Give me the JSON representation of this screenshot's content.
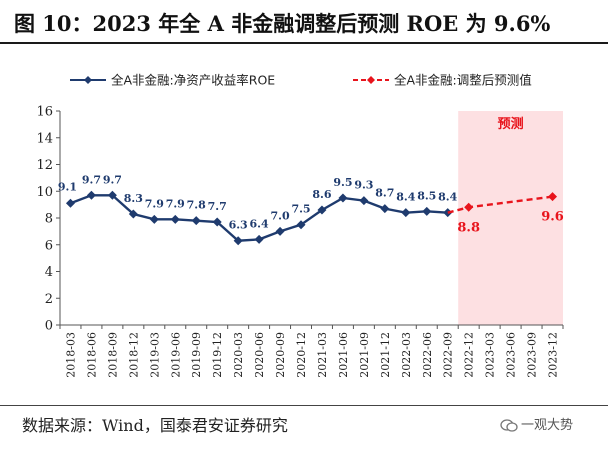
{
  "title": "图 10：2023 年全 A 非金融调整后预测 ROE 为 9.6%",
  "source": "数据来源：Wind，国泰君安证券研究",
  "watermark": "一观大势",
  "chart_data": {
    "type": "line",
    "title": "",
    "xlabel": "",
    "ylabel": "",
    "ylim": [
      0,
      16
    ],
    "yticks": [
      0,
      2,
      4,
      6,
      8,
      10,
      12,
      14,
      16
    ],
    "grid": false,
    "legend_position": "top",
    "categories": [
      "2018-03",
      "2018-06",
      "2018-09",
      "2018-12",
      "2019-03",
      "2019-06",
      "2019-09",
      "2019-12",
      "2020-03",
      "2020-06",
      "2020-09",
      "2020-12",
      "2021-03",
      "2021-06",
      "2021-09",
      "2021-12",
      "2022-03",
      "2022-06",
      "2022-09",
      "2022-12",
      "2023-03",
      "2023-06",
      "2023-09",
      "2023-12"
    ],
    "series": [
      {
        "name": "全A非金融:净资产收益率ROE",
        "color": "#1f3b6e",
        "style": "solid",
        "marker": "diamond",
        "x": [
          "2018-03",
          "2018-06",
          "2018-09",
          "2018-12",
          "2019-03",
          "2019-06",
          "2019-09",
          "2019-12",
          "2020-03",
          "2020-06",
          "2020-09",
          "2020-12",
          "2021-03",
          "2021-06",
          "2021-09",
          "2021-12",
          "2022-03",
          "2022-06",
          "2022-09"
        ],
        "values": [
          9.1,
          9.7,
          9.7,
          8.3,
          7.9,
          7.9,
          7.8,
          7.7,
          6.3,
          6.4,
          7.0,
          7.5,
          8.6,
          9.5,
          9.3,
          8.7,
          8.4,
          8.5,
          8.4
        ],
        "labels": [
          "9.1",
          "9.7",
          "9.7",
          "8.3",
          "7.9",
          "7.9",
          "7.8",
          "7.7",
          "6.3",
          "6.4",
          "7.0",
          "7.5",
          "8.6",
          "9.5",
          "9.3",
          "8.7",
          "8.4",
          "8.5",
          "8.4"
        ]
      },
      {
        "name": "全A非金融:调整后预测值",
        "color": "#e8141c",
        "style": "dashed",
        "marker": "diamond",
        "x": [
          "2022-09",
          "2022-12",
          "2023-12"
        ],
        "values": [
          8.4,
          8.8,
          9.6
        ],
        "labels": [
          "",
          "8.8",
          "9.6"
        ]
      }
    ],
    "forecast_region": {
      "from": "2022-12",
      "to": "2023-12",
      "label": "预测",
      "fill": "#fde0e2",
      "label_color": "#e8141c"
    }
  }
}
